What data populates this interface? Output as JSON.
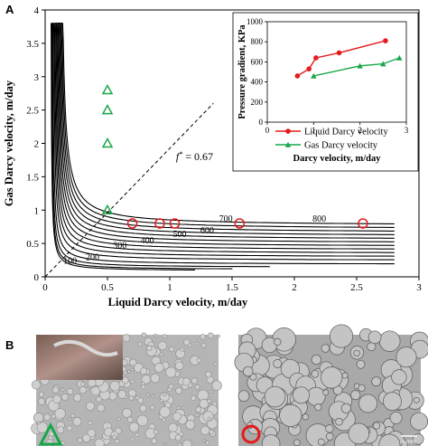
{
  "figure": {
    "panel_a_letter": "A",
    "panel_b_letter": "B",
    "annotation_fg": "f",
    "annotation_fg_sup": "*",
    "annotation_fg_value": "= 0.67",
    "scale_bar_label": "1 mm"
  },
  "colors": {
    "curve": "#000000",
    "liquid_series": "#e41a1c",
    "gas_series": "#1aa64a",
    "dashed_line": "#000000"
  },
  "chart_data": [
    {
      "type": "line",
      "xlabel": "Liquid Darcy velocity, m/day",
      "ylabel": "Gas Darcy velocity, m/day",
      "xlim": [
        0,
        3
      ],
      "ylim": [
        0,
        4
      ],
      "xticks": [
        "0",
        "0.5",
        "1",
        "1.5",
        "2",
        "2.5",
        "3"
      ],
      "yticks": [
        "0",
        "0.5",
        "1",
        "1.5",
        "2",
        "2.5",
        "3",
        "3.5",
        "4"
      ],
      "grid": false,
      "dashed_line": {
        "label": "f_g* = 0.67",
        "points": [
          [
            0,
            0
          ],
          [
            1.35,
            2.6
          ]
        ]
      },
      "iso_curves": [
        {
          "label": "100",
          "offset": 0.06
        },
        {
          "label": "200",
          "offset": 0.09
        },
        {
          "label": "300",
          "offset": 0.14
        },
        {
          "label": "400",
          "offset": 0.21
        },
        {
          "label": "500",
          "offset": 0.3
        },
        {
          "label": "600",
          "offset": 0.38
        },
        {
          "label": "700",
          "offset": 0.46
        },
        {
          "label": "800",
          "offset": 0.54
        },
        {
          "label": "",
          "offset": 0.62
        },
        {
          "label": "",
          "offset": 0.7
        },
        {
          "label": "",
          "offset": 0.78
        },
        {
          "label": "",
          "offset": 0.86
        },
        {
          "label": "",
          "offset": 0.94
        },
        {
          "label": "",
          "offset": 1.02
        },
        {
          "label": "",
          "offset": 1.1
        }
      ],
      "visible_curve_labels": [
        {
          "text": "100",
          "x": 0.2,
          "y": 0.2
        },
        {
          "text": "200",
          "x": 0.38,
          "y": 0.25
        },
        {
          "text": "300",
          "x": 0.6,
          "y": 0.43
        },
        {
          "text": "400",
          "x": 0.82,
          "y": 0.5
        },
        {
          "text": "500",
          "x": 1.08,
          "y": 0.6
        },
        {
          "text": "600",
          "x": 1.3,
          "y": 0.65
        },
        {
          "text": "700",
          "x": 1.45,
          "y": 0.83
        },
        {
          "text": "800",
          "x": 2.2,
          "y": 0.83
        }
      ],
      "series": [
        {
          "marker": "triangle-open",
          "color": "#1aa64a",
          "x": [
            0.5,
            0.5,
            0.5,
            0.5
          ],
          "y": [
            2.8,
            2.5,
            2.0,
            1.0
          ]
        },
        {
          "marker": "circle-open",
          "color": "#e41a1c",
          "x": [
            0.7,
            0.92,
            1.04,
            1.56,
            2.55
          ],
          "y": [
            0.8,
            0.8,
            0.8,
            0.8,
            0.8
          ]
        }
      ]
    },
    {
      "type": "line",
      "xlabel": "Darcy velocity, m/day",
      "ylabel": "Pressure gradient, KPa",
      "xlim": [
        0,
        3
      ],
      "ylim": [
        0,
        1000
      ],
      "xticks": [
        "0",
        "1",
        "2",
        "3"
      ],
      "yticks": [
        "0",
        "200",
        "400",
        "600",
        "800",
        "1000"
      ],
      "legend": "bottom-right",
      "series": [
        {
          "name": "Liquid Darcy velocity",
          "color": "#e41a1c",
          "marker": "circle",
          "x": [
            0.65,
            0.9,
            1.05,
            1.55,
            2.55
          ],
          "y": [
            460,
            530,
            640,
            690,
            810
          ]
        },
        {
          "name": "Gas Darcy velocity",
          "color": "#1aa64a",
          "marker": "triangle",
          "x": [
            1.0,
            2.0,
            2.5,
            2.85
          ],
          "y": [
            460,
            560,
            580,
            640
          ]
        }
      ]
    }
  ]
}
